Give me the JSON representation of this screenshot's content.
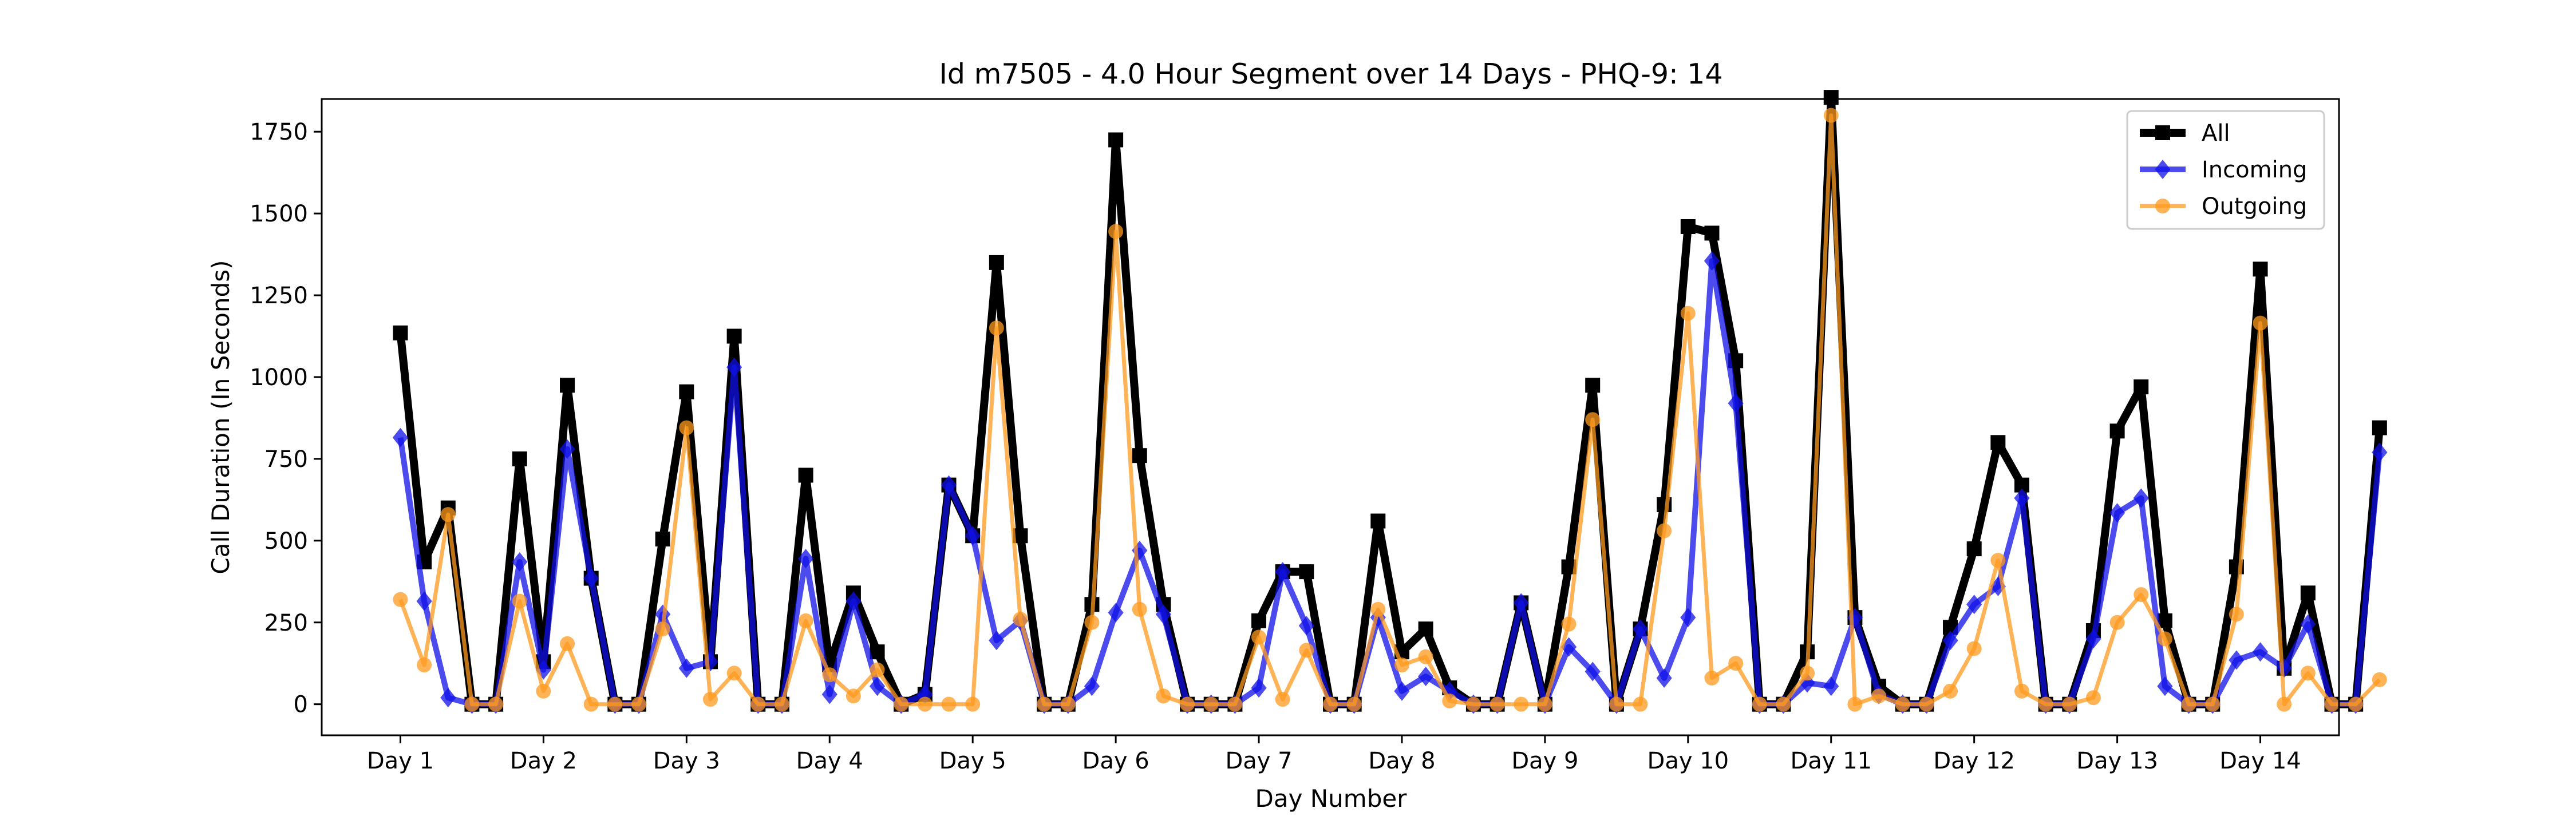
{
  "chart_data": {
    "type": "line",
    "title": "Id m7505 - 4.0 Hour Segment over 14 Days - PHQ-9: 14",
    "xlabel": "Day Number",
    "ylabel": "Call Duration (In Seconds)",
    "ylim": [
      -95,
      1850
    ],
    "xlim": [
      0.45,
      14.55
    ],
    "yticks": [
      0,
      250,
      500,
      750,
      1000,
      1250,
      1500,
      1750
    ],
    "xtick_labels": [
      "Day 1",
      "Day 2",
      "Day 3",
      "Day 4",
      "Day 5",
      "Day 6",
      "Day 7",
      "Day 8",
      "Day 9",
      "Day 10",
      "Day 11",
      "Day 12",
      "Day 13",
      "Day 14"
    ],
    "grid": false,
    "legend_position": "top-right",
    "points_per_day": 6,
    "series": [
      {
        "name": "All",
        "color": "#000000",
        "marker": "square",
        "values": [
          1135,
          435,
          600,
          0,
          0,
          750,
          130,
          975,
          385,
          0,
          0,
          505,
          955,
          130,
          1125,
          0,
          0,
          700,
          120,
          340,
          160,
          0,
          30,
          670,
          515,
          1350,
          515,
          0,
          0,
          305,
          1725,
          760,
          305,
          0,
          0,
          0,
          255,
          405,
          405,
          0,
          0,
          560,
          160,
          230,
          50,
          0,
          0,
          310,
          0,
          420,
          975,
          0,
          230,
          610,
          1460,
          1440,
          1050,
          0,
          0,
          160,
          1855,
          265,
          55,
          0,
          0,
          235,
          475,
          800,
          670,
          0,
          0,
          225,
          835,
          970,
          255,
          0,
          0,
          420,
          1330,
          110,
          340,
          0,
          0,
          845
        ]
      },
      {
        "name": "Incoming",
        "color": "#1010e8",
        "marker": "diamond",
        "values": [
          815,
          315,
          20,
          0,
          0,
          435,
          105,
          780,
          385,
          0,
          0,
          275,
          110,
          130,
          1030,
          0,
          0,
          445,
          30,
          315,
          55,
          0,
          30,
          670,
          515,
          195,
          255,
          0,
          0,
          55,
          280,
          470,
          275,
          0,
          0,
          0,
          50,
          405,
          240,
          0,
          0,
          265,
          40,
          85,
          40,
          0,
          0,
          310,
          0,
          175,
          100,
          0,
          230,
          80,
          265,
          1355,
          920,
          0,
          0,
          65,
          55,
          265,
          30,
          0,
          0,
          195,
          305,
          360,
          630,
          0,
          0,
          200,
          585,
          630,
          55,
          0,
          0,
          135,
          160,
          110,
          245,
          0,
          0,
          770
        ]
      },
      {
        "name": "Outgoing",
        "color": "#ff9a1f",
        "marker": "circle",
        "values": [
          320,
          120,
          580,
          0,
          0,
          315,
          40,
          185,
          0,
          0,
          0,
          230,
          845,
          15,
          95,
          0,
          0,
          255,
          90,
          25,
          105,
          0,
          0,
          0,
          0,
          1150,
          260,
          0,
          0,
          250,
          1445,
          290,
          25,
          0,
          0,
          0,
          205,
          15,
          165,
          0,
          0,
          290,
          120,
          145,
          10,
          0,
          0,
          0,
          0,
          245,
          870,
          0,
          0,
          530,
          1195,
          80,
          125,
          0,
          0,
          95,
          1800,
          0,
          25,
          0,
          0,
          40,
          170,
          440,
          40,
          0,
          0,
          20,
          250,
          335,
          200,
          0,
          0,
          275,
          1165,
          0,
          95,
          0,
          0,
          75
        ]
      }
    ]
  }
}
